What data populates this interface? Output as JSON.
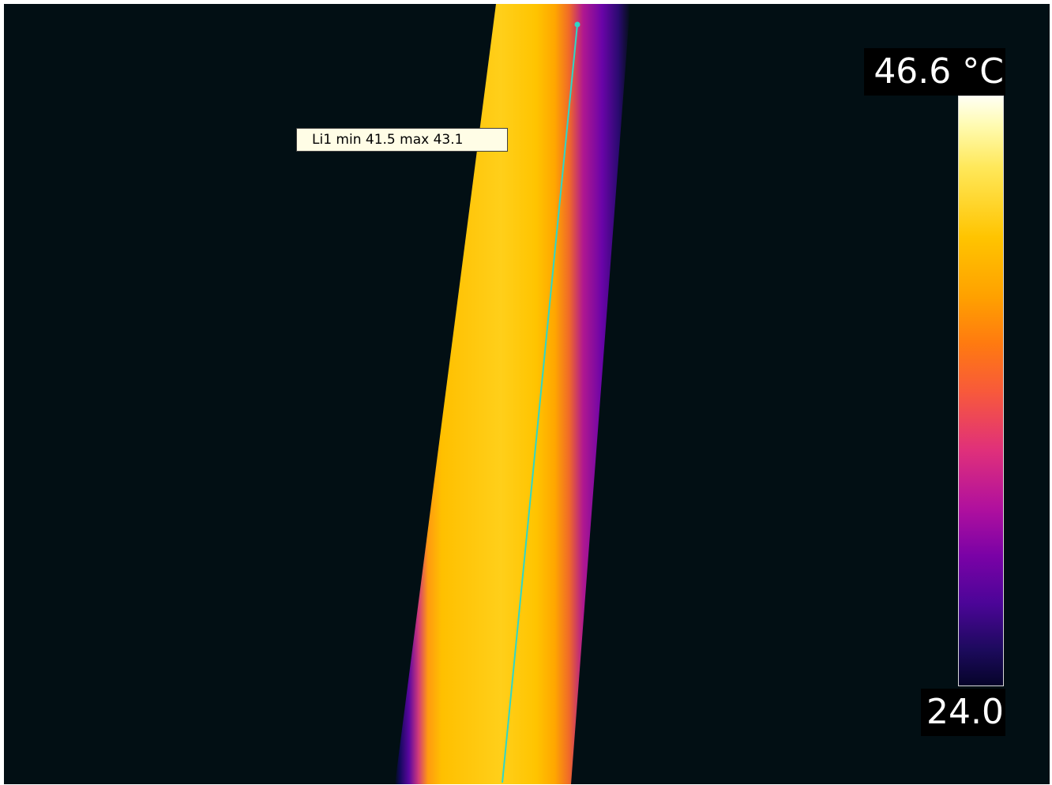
{
  "measurement": {
    "label": "Li1 min 41.5 max 43.1",
    "line_color": "#2fd6c8"
  },
  "scale": {
    "max_label": "46.6 °C",
    "min_label": "24.0",
    "palette": "iron"
  },
  "colors": {
    "background": "#020f14",
    "hot": "#ffc400",
    "edge": "#7a02a6"
  }
}
